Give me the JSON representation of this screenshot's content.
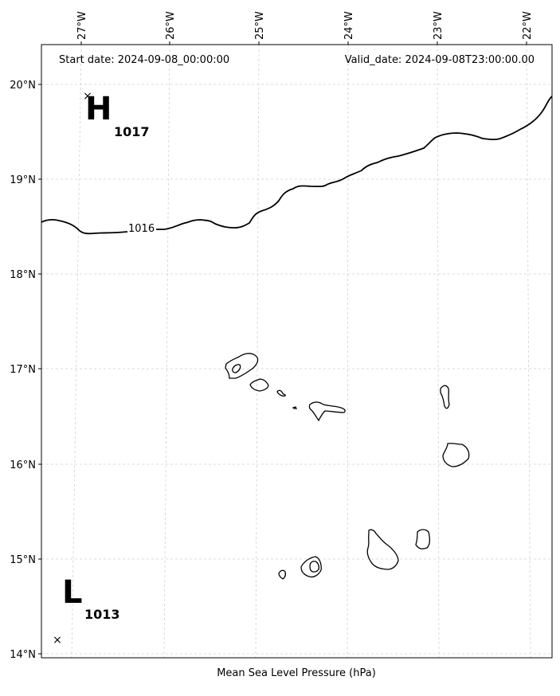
{
  "header": {
    "start_date": "Start date: 2024-09-08_00:00:00",
    "valid_date": "Valid_date: 2024-09-08T23:00:00.00"
  },
  "xlabel": "Mean Sea Level Pressure (hPa)",
  "lon_ticks": [
    "27°W",
    "26°W",
    "25°W",
    "24°W",
    "23°W",
    "22°W"
  ],
  "lat_ticks": [
    "20°N",
    "19°N",
    "18°N",
    "17°N",
    "16°N",
    "15°N",
    "14°N"
  ],
  "isobar_label": "1016",
  "high": {
    "letter": "H",
    "value": "1017"
  },
  "low": {
    "letter": "L",
    "value": "1013"
  },
  "marker_symbol": "×"
}
